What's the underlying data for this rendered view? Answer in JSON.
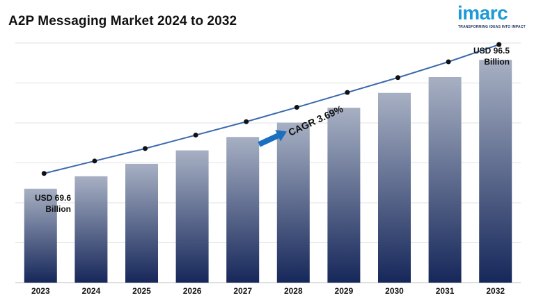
{
  "title": "A2P Messaging Market 2024 to 2032",
  "logo": {
    "word": "imarc",
    "tagline": "TRANSFORMING IDEAS INTO IMPACT"
  },
  "colors": {
    "bar_top": "#a7b0c3",
    "bar_bottom": "#16275a",
    "line": "#3b6aad",
    "arrow": "#1b6fbf",
    "logo": "#1a9ad6"
  },
  "chart_data": {
    "type": "bar",
    "title": "A2P Messaging Market 2024 to 2032",
    "categories": [
      "2023",
      "2024",
      "2025",
      "2026",
      "2027",
      "2028",
      "2029",
      "2030",
      "2031",
      "2032"
    ],
    "values": [
      69.6,
      72.2,
      74.8,
      77.6,
      80.4,
      83.4,
      86.5,
      89.6,
      92.9,
      96.5
    ],
    "line_overlay": true,
    "ylim": [
      50,
      100
    ],
    "grid": true,
    "annotations": {
      "start": [
        "USD 69.6",
        "Billion"
      ],
      "end": [
        "USD 96.5",
        "Billion"
      ],
      "cagr": "CAGR 3.69%"
    }
  }
}
